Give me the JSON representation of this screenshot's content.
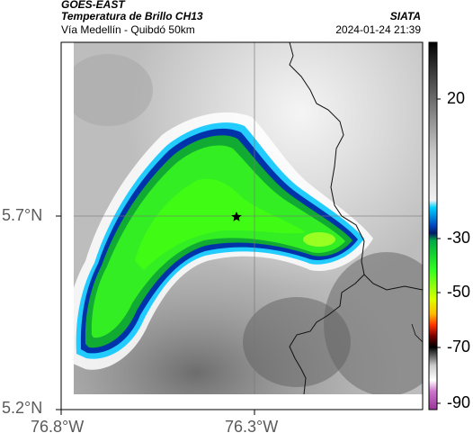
{
  "header": {
    "satellite": "GOES-EAST",
    "product": "Temperatura de Brillo CH13",
    "region": "Vía Medellín - Quibdó 50km",
    "source": "SIATA",
    "datetime": "2024-01-24 21:39"
  },
  "axes": {
    "x_ticks": [
      "76.8°W",
      "76.3°W"
    ],
    "y_ticks": [
      "5.7°N",
      "5.2°N"
    ]
  },
  "colorbar": {
    "labels": [
      "20",
      "-30",
      "-50",
      "-70",
      "-90"
    ]
  },
  "marker": {
    "icon": "star-icon"
  }
}
